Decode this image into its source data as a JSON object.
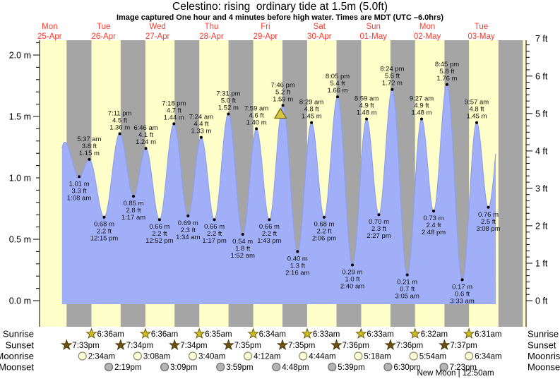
{
  "title": "Celestino: rising  ordinary tide at 1.5m (5.0ft)",
  "subtitle": "Image captured One hour and 4 minutes before high water. Times are MDT (UTC –6.0hrs)",
  "days": [
    {
      "name": "Mon",
      "date": "25-Apr"
    },
    {
      "name": "Tue",
      "date": "26-Apr"
    },
    {
      "name": "Wed",
      "date": "27-Apr"
    },
    {
      "name": "Thu",
      "date": "28-Apr"
    },
    {
      "name": "Fri",
      "date": "29-Apr"
    },
    {
      "name": "Sat",
      "date": "30-Apr"
    },
    {
      "name": "Sun",
      "date": "01-May"
    },
    {
      "name": "Mon",
      "date": "02-May"
    },
    {
      "name": "Tue",
      "date": "03-May"
    }
  ],
  "chart_data": {
    "type": "area",
    "title": "Celestino: rising ordinary tide at 1.5m (5.0ft)",
    "ylabel_left": "meters",
    "ylabel_right": "feet",
    "ylim_m": [
      0.0,
      2.13
    ],
    "ylim_ft": [
      0,
      7
    ],
    "y_axis_left_labels": [
      {
        "v": 2.0,
        "label": "2.0 m"
      },
      {
        "v": 1.5,
        "label": "1.5 m"
      },
      {
        "v": 1.0,
        "label": "1.0 m"
      },
      {
        "v": 0.5,
        "label": "0.5 m"
      },
      {
        "v": 0.0,
        "label": "0.0 m"
      }
    ],
    "y_axis_right_labels": [
      {
        "f": 7,
        "label": "7 ft"
      },
      {
        "f": 6,
        "label": "6 ft"
      },
      {
        "f": 5,
        "label": "5 ft"
      },
      {
        "f": 4,
        "label": "4 ft"
      },
      {
        "f": 3,
        "label": "3 ft"
      },
      {
        "f": 2,
        "label": "2 ft"
      },
      {
        "f": 1,
        "label": "1 ft"
      },
      {
        "f": 0,
        "label": "0 ft"
      }
    ],
    "tide_events": [
      {
        "d": 0,
        "t": 11.5,
        "h": 0.55,
        "type": "low",
        "pseudo": true
      },
      {
        "d": 0,
        "t": 18.67,
        "h": 1.29,
        "type": "high",
        "unlabeled": true
      },
      {
        "d": 1,
        "t": 1.13,
        "h": 1.01,
        "type": "low",
        "m": "1.01 m",
        "ft": "3.3 ft",
        "time": "1:08 am"
      },
      {
        "d": 1,
        "t": 5.62,
        "h": 1.15,
        "type": "high",
        "time": "5:37 am",
        "ft": "3.8 ft",
        "m": "1.15 m"
      },
      {
        "d": 1,
        "t": 12.25,
        "h": 0.68,
        "type": "low",
        "m": "0.68 m",
        "ft": "2.2 ft",
        "time": "12:15 pm"
      },
      {
        "d": 1,
        "t": 19.18,
        "h": 1.36,
        "type": "high",
        "time": "7:11 pm",
        "ft": "4.5 ft",
        "m": "1.36 m"
      },
      {
        "d": 2,
        "t": 1.28,
        "h": 0.85,
        "type": "low",
        "m": "0.85 m",
        "ft": "2.8 ft",
        "time": "1:17 am"
      },
      {
        "d": 2,
        "t": 6.77,
        "h": 1.24,
        "type": "high",
        "time": "6:46 am",
        "ft": "4.1 ft",
        "m": "1.24 m"
      },
      {
        "d": 2,
        "t": 12.87,
        "h": 0.66,
        "type": "low",
        "m": "0.66 m",
        "ft": "2.2 ft",
        "time": "12:52 pm"
      },
      {
        "d": 2,
        "t": 19.3,
        "h": 1.44,
        "type": "high",
        "time": "7:18 pm",
        "ft": "4.7 ft",
        "m": "1.44 m"
      },
      {
        "d": 3,
        "t": 1.57,
        "h": 0.69,
        "type": "low",
        "m": "0.69 m",
        "ft": "2.3 ft",
        "time": "1:34 am"
      },
      {
        "d": 3,
        "t": 7.4,
        "h": 1.33,
        "type": "high",
        "time": "7:24 am",
        "ft": "4.4 ft",
        "m": "1.33 m"
      },
      {
        "d": 3,
        "t": 13.28,
        "h": 0.66,
        "type": "low",
        "m": "0.66 m",
        "ft": "2.2 ft",
        "time": "1:17 pm"
      },
      {
        "d": 3,
        "t": 19.52,
        "h": 1.52,
        "type": "high",
        "time": "7:31 pm",
        "ft": "5.0 ft",
        "m": "1.52 m"
      },
      {
        "d": 4,
        "t": 1.87,
        "h": 0.54,
        "type": "low",
        "m": "0.54 m",
        "ft": "1.8 ft",
        "time": "1:52 am"
      },
      {
        "d": 4,
        "t": 7.98,
        "h": 1.4,
        "type": "high",
        "time": "7:59 am",
        "ft": "4.6 ft",
        "m": "1.40 m"
      },
      {
        "d": 4,
        "t": 13.72,
        "h": 0.66,
        "type": "low",
        "m": "0.66 m",
        "ft": "2.2 ft",
        "time": "1:43 pm"
      },
      {
        "d": 4,
        "t": 19.77,
        "h": 1.59,
        "type": "high",
        "time": "7:46 pm",
        "ft": "5.2 ft",
        "m": "1.59 m"
      },
      {
        "d": 5,
        "t": 2.27,
        "h": 0.4,
        "type": "low",
        "m": "0.40 m",
        "ft": "1.3 ft",
        "time": "2:16 am"
      },
      {
        "d": 5,
        "t": 8.48,
        "h": 1.45,
        "type": "high",
        "time": "8:29 am",
        "ft": "4.8 ft",
        "m": "1.45 m"
      },
      {
        "d": 5,
        "t": 14.1,
        "h": 0.68,
        "type": "low",
        "m": "0.68 m",
        "ft": "2.2 ft",
        "time": "2:06 pm"
      },
      {
        "d": 5,
        "t": 20.08,
        "h": 1.66,
        "type": "high",
        "time": "8:05 pm",
        "ft": "5.4 ft",
        "m": "1.66 m"
      },
      {
        "d": 6,
        "t": 2.67,
        "h": 0.29,
        "type": "low",
        "m": "0.29 m",
        "ft": "1.0 ft",
        "time": "2:40 am"
      },
      {
        "d": 6,
        "t": 8.98,
        "h": 1.48,
        "type": "high",
        "time": "8:59 am",
        "ft": "4.9 ft",
        "m": "1.48 m"
      },
      {
        "d": 6,
        "t": 14.45,
        "h": 0.7,
        "type": "low",
        "m": "0.70 m",
        "ft": "2.3 ft",
        "time": "2:27 pm"
      },
      {
        "d": 6,
        "t": 20.4,
        "h": 1.72,
        "type": "high",
        "time": "8:24 pm",
        "ft": "5.6 ft",
        "m": "1.72 m"
      },
      {
        "d": 7,
        "t": 3.08,
        "h": 0.21,
        "type": "low",
        "m": "0.21 m",
        "ft": "0.7 ft",
        "time": "3:05 am"
      },
      {
        "d": 7,
        "t": 9.45,
        "h": 1.48,
        "type": "high",
        "time": "9:27 am",
        "ft": "4.9 ft",
        "m": "1.48 m"
      },
      {
        "d": 7,
        "t": 14.8,
        "h": 0.73,
        "type": "low",
        "m": "0.73 m",
        "ft": "2.4 ft",
        "time": "2:48 pm"
      },
      {
        "d": 7,
        "t": 20.75,
        "h": 1.76,
        "type": "high",
        "time": "8:45 pm",
        "ft": "5.8 ft",
        "m": "1.76 m"
      },
      {
        "d": 8,
        "t": 3.55,
        "h": 0.17,
        "type": "low",
        "m": "0.17 m",
        "ft": "0.6 ft",
        "time": "3:33 am"
      },
      {
        "d": 8,
        "t": 9.95,
        "h": 1.45,
        "type": "high",
        "time": "9:57 am",
        "ft": "4.8 ft",
        "m": "1.45 m"
      },
      {
        "d": 8,
        "t": 15.13,
        "h": 0.76,
        "type": "low",
        "m": "0.76 m",
        "ft": "2.5 ft",
        "time": "3:08 pm"
      },
      {
        "d": 8,
        "t": 22.5,
        "h": 1.82,
        "type": "high",
        "pseudo": true
      }
    ],
    "capture_marker": {
      "d": 4,
      "t": 18.7
    },
    "band_helpers": {
      "sunset_d8": 19.62,
      "sunrise_d9": 6.5
    }
  },
  "sun_moon": {
    "rows": [
      {
        "label": "Sunrise",
        "marker": "sunrise-star",
        "events": [
          {
            "d": 1,
            "t": 6.6,
            "label": "6:36am"
          },
          {
            "d": 2,
            "t": 6.6,
            "label": "6:36am"
          },
          {
            "d": 3,
            "t": 6.58,
            "label": "6:35am"
          },
          {
            "d": 4,
            "t": 6.57,
            "label": "6:34am"
          },
          {
            "d": 5,
            "t": 6.55,
            "label": "6:33am"
          },
          {
            "d": 6,
            "t": 6.55,
            "label": "6:33am"
          },
          {
            "d": 7,
            "t": 6.53,
            "label": "6:32am"
          },
          {
            "d": 8,
            "t": 6.52,
            "label": "6:31am"
          }
        ]
      },
      {
        "label": "Sunset",
        "marker": "sunset-star",
        "events": [
          {
            "d": 0,
            "t": 19.55,
            "label": "7:33pm"
          },
          {
            "d": 1,
            "t": 19.57,
            "label": "7:34pm"
          },
          {
            "d": 2,
            "t": 19.57,
            "label": "7:34pm"
          },
          {
            "d": 3,
            "t": 19.58,
            "label": "7:35pm"
          },
          {
            "d": 4,
            "t": 19.58,
            "label": "7:35pm"
          },
          {
            "d": 5,
            "t": 19.6,
            "label": "7:36pm"
          },
          {
            "d": 6,
            "t": 19.6,
            "label": "7:36pm"
          },
          {
            "d": 7,
            "t": 19.62,
            "label": "7:37pm"
          }
        ]
      },
      {
        "label": "Moonrise",
        "marker": "moonrise-circle",
        "events": [
          {
            "d": 1,
            "t": 2.57,
            "label": "2:34am"
          },
          {
            "d": 2,
            "t": 3.13,
            "label": "3:08am"
          },
          {
            "d": 3,
            "t": 3.67,
            "label": "3:40am"
          },
          {
            "d": 4,
            "t": 4.2,
            "label": "4:12am"
          },
          {
            "d": 5,
            "t": 4.73,
            "label": "4:44am"
          },
          {
            "d": 6,
            "t": 5.3,
            "label": "5:18am"
          },
          {
            "d": 7,
            "t": 5.9,
            "label": "5:54am"
          },
          {
            "d": 8,
            "t": 6.57,
            "label": "6:34am"
          }
        ]
      },
      {
        "label": "Moonset",
        "marker": "moonset-circle",
        "events": [
          {
            "d": 1,
            "t": 14.32,
            "label": "2:19pm"
          },
          {
            "d": 2,
            "t": 15.15,
            "label": "3:09pm"
          },
          {
            "d": 3,
            "t": 15.98,
            "label": "3:59pm"
          },
          {
            "d": 4,
            "t": 16.8,
            "label": "4:48pm"
          },
          {
            "d": 5,
            "t": 17.65,
            "label": "5:39pm"
          },
          {
            "d": 6,
            "t": 18.5,
            "label": "6:30pm"
          },
          {
            "d": 7,
            "t": 19.38,
            "label": "7:23pm"
          }
        ]
      }
    ],
    "new_moon": "New Moon | 12:50am"
  },
  "colors": {
    "day_band": "#FFFFC9",
    "night_band": "#A5A5A5",
    "tide_fill": "#A0AFF8",
    "tide_edge": "#8CA0F0",
    "day_label_red": "#FF3B2F",
    "annotation_text": "#111111",
    "axis": "#000000",
    "sunrise_star_fill": "#D2BE1E",
    "sunrise_star_stroke": "#6B5E0F",
    "sunset_star_fill": "#6F5214",
    "sunset_star_stroke": "#4A380C",
    "moonrise_fill": "#FFFFD8",
    "moonrise_stroke": "#8B8B6B",
    "moonset_fill": "#B4B4B4",
    "moonset_stroke": "#6E6E6E",
    "capture_marker_fill": "#D9C63F",
    "capture_marker_stroke": "#776A12"
  }
}
